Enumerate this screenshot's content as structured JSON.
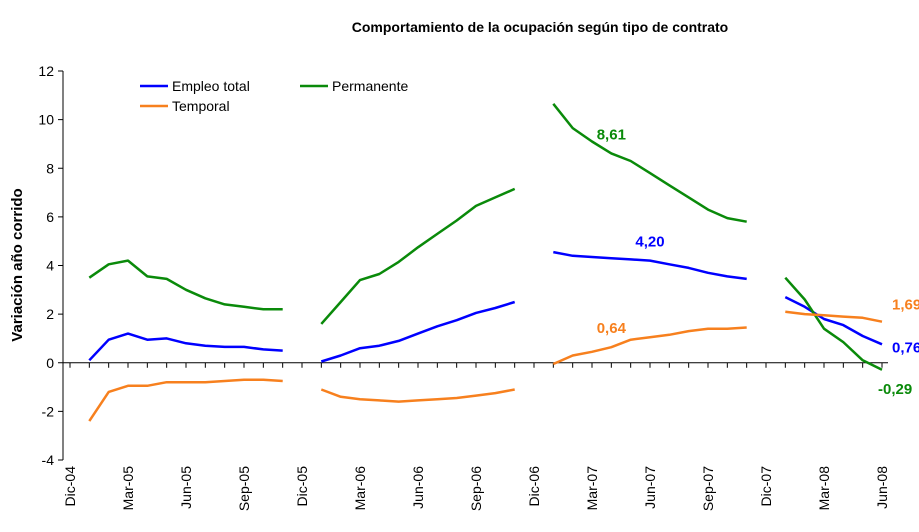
{
  "chart_data": {
    "type": "line",
    "title": "Comportamiento de la ocupación según tipo de contrato",
    "y_label": "Variación año corrido",
    "categories": [
      "Dic-04",
      null,
      null,
      "Mar-05",
      null,
      null,
      "Jun-05",
      null,
      null,
      "Sep-05",
      null,
      null,
      "Dic-05",
      null,
      null,
      "Mar-06",
      null,
      null,
      "Jun-06",
      null,
      null,
      "Sep-06",
      null,
      null,
      "Dic-06",
      null,
      null,
      "Mar-07",
      null,
      null,
      "Jun-07",
      null,
      null,
      "Sep-07",
      null,
      null,
      "Dic-07",
      null,
      null,
      "Mar-08",
      null,
      null,
      "Jun-08"
    ],
    "ylim": [
      -4,
      12
    ],
    "yticks": [
      -4,
      -2,
      0,
      2,
      4,
      6,
      8,
      10,
      12
    ],
    "grid": false,
    "legend": "top-left",
    "series": [
      {
        "name": "Empleo total",
        "color": "#0000ff",
        "values": [
          null,
          0.1,
          0.95,
          1.2,
          0.95,
          1.0,
          0.8,
          0.7,
          0.65,
          0.65,
          0.55,
          0.5,
          null,
          0.05,
          0.3,
          0.6,
          0.7,
          0.9,
          1.2,
          1.5,
          1.75,
          2.05,
          2.25,
          2.5,
          null,
          4.55,
          4.4,
          4.35,
          4.3,
          4.25,
          4.2,
          4.05,
          3.9,
          3.7,
          3.55,
          3.45,
          null,
          2.7,
          2.3,
          1.8,
          1.55,
          1.1,
          0.76
        ],
        "value_labels": [
          null,
          null,
          null,
          null,
          null,
          null,
          null,
          null,
          null,
          null,
          null,
          null,
          null,
          null,
          null,
          null,
          null,
          null,
          null,
          null,
          null,
          null,
          null,
          null,
          null,
          null,
          null,
          null,
          null,
          null,
          "4,20",
          null,
          null,
          null,
          null,
          null,
          null,
          null,
          null,
          null,
          null,
          null,
          "0,76"
        ]
      },
      {
        "name": "Permanente",
        "color": "#0a8a0a",
        "values": [
          null,
          3.5,
          4.05,
          4.2,
          3.55,
          3.45,
          3.0,
          2.65,
          2.4,
          2.3,
          2.2,
          2.2,
          null,
          1.6,
          2.5,
          3.4,
          3.65,
          4.15,
          4.75,
          5.3,
          5.85,
          6.45,
          6.8,
          7.15,
          null,
          10.65,
          9.65,
          9.1,
          8.61,
          8.3,
          7.8,
          7.3,
          6.8,
          6.3,
          5.95,
          5.8,
          null,
          3.5,
          2.6,
          1.4,
          0.85,
          0.1,
          -0.29
        ],
        "value_labels": [
          null,
          null,
          null,
          null,
          null,
          null,
          null,
          null,
          null,
          null,
          null,
          null,
          null,
          null,
          null,
          null,
          null,
          null,
          null,
          null,
          null,
          null,
          null,
          null,
          null,
          null,
          null,
          null,
          "8,61",
          null,
          null,
          null,
          null,
          null,
          null,
          null,
          null,
          null,
          null,
          null,
          null,
          null,
          "-0,29"
        ]
      },
      {
        "name": "Temporal",
        "color": "#f7801e",
        "values": [
          null,
          -2.4,
          -1.2,
          -0.95,
          -0.95,
          -0.8,
          -0.8,
          -0.8,
          -0.75,
          -0.7,
          -0.7,
          -0.75,
          null,
          -1.1,
          -1.4,
          -1.5,
          -1.55,
          -1.6,
          -1.55,
          -1.5,
          -1.45,
          -1.35,
          -1.25,
          -1.1,
          null,
          -0.05,
          0.3,
          0.45,
          0.64,
          0.95,
          1.05,
          1.15,
          1.3,
          1.4,
          1.4,
          1.45,
          null,
          2.1,
          2.0,
          1.95,
          1.9,
          1.85,
          1.69
        ],
        "value_labels": [
          null,
          null,
          null,
          null,
          null,
          null,
          null,
          null,
          null,
          null,
          null,
          null,
          null,
          null,
          null,
          null,
          null,
          null,
          null,
          null,
          null,
          null,
          null,
          null,
          null,
          null,
          null,
          null,
          "0,64",
          null,
          null,
          null,
          null,
          null,
          null,
          null,
          null,
          null,
          null,
          null,
          null,
          null,
          "1,69"
        ]
      }
    ]
  }
}
